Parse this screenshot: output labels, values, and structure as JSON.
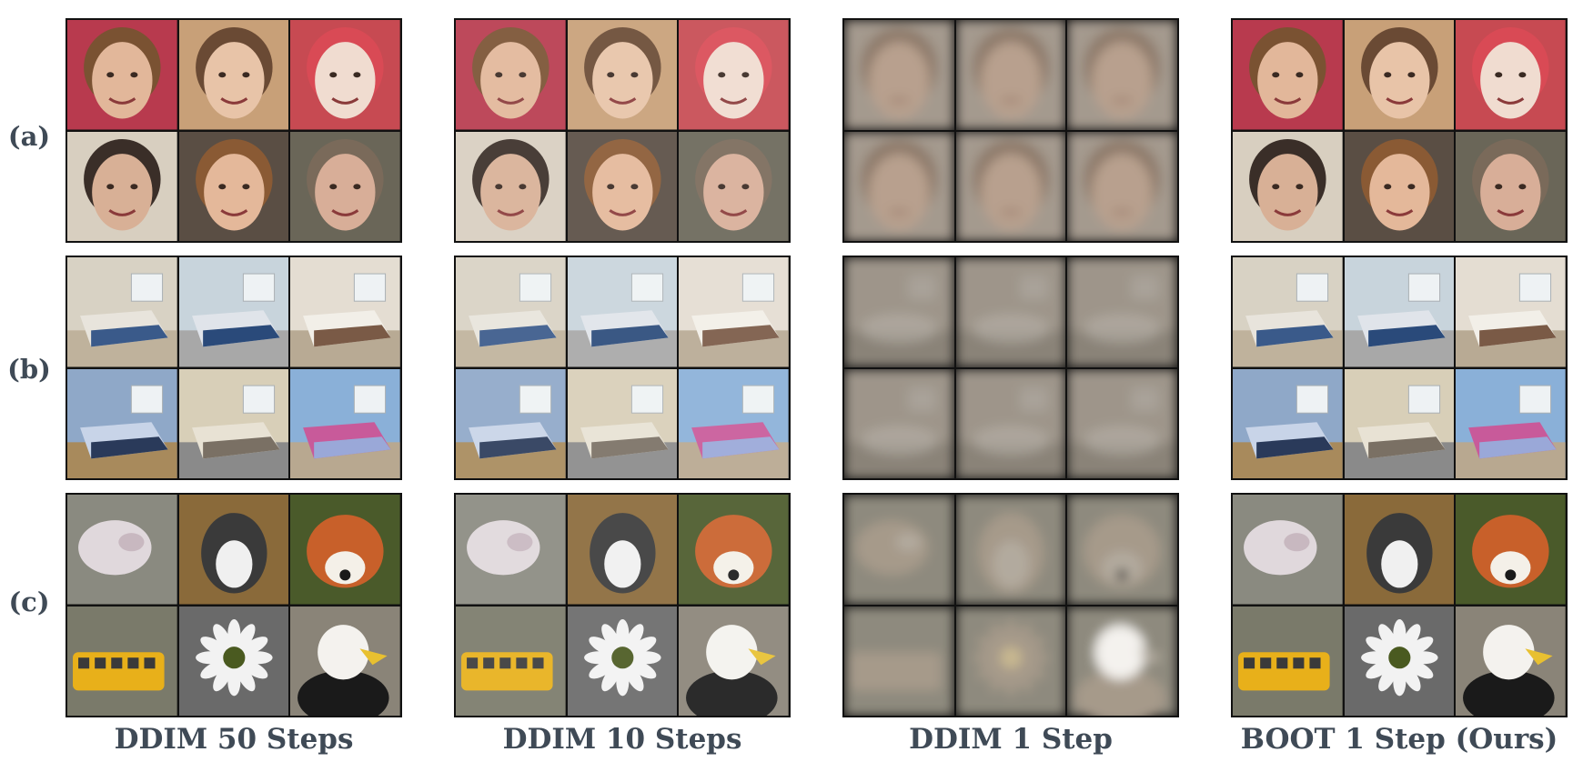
{
  "row_labels": [
    "(a)",
    "(b)",
    "(c)"
  ],
  "column_labels": [
    "DDIM 50 Steps",
    "DDIM 10 Steps",
    "DDIM 1 Step",
    "BOOT 1 Step (Ours)"
  ],
  "colors": {
    "label_text": "#3f4a56",
    "border": "#111111"
  }
}
